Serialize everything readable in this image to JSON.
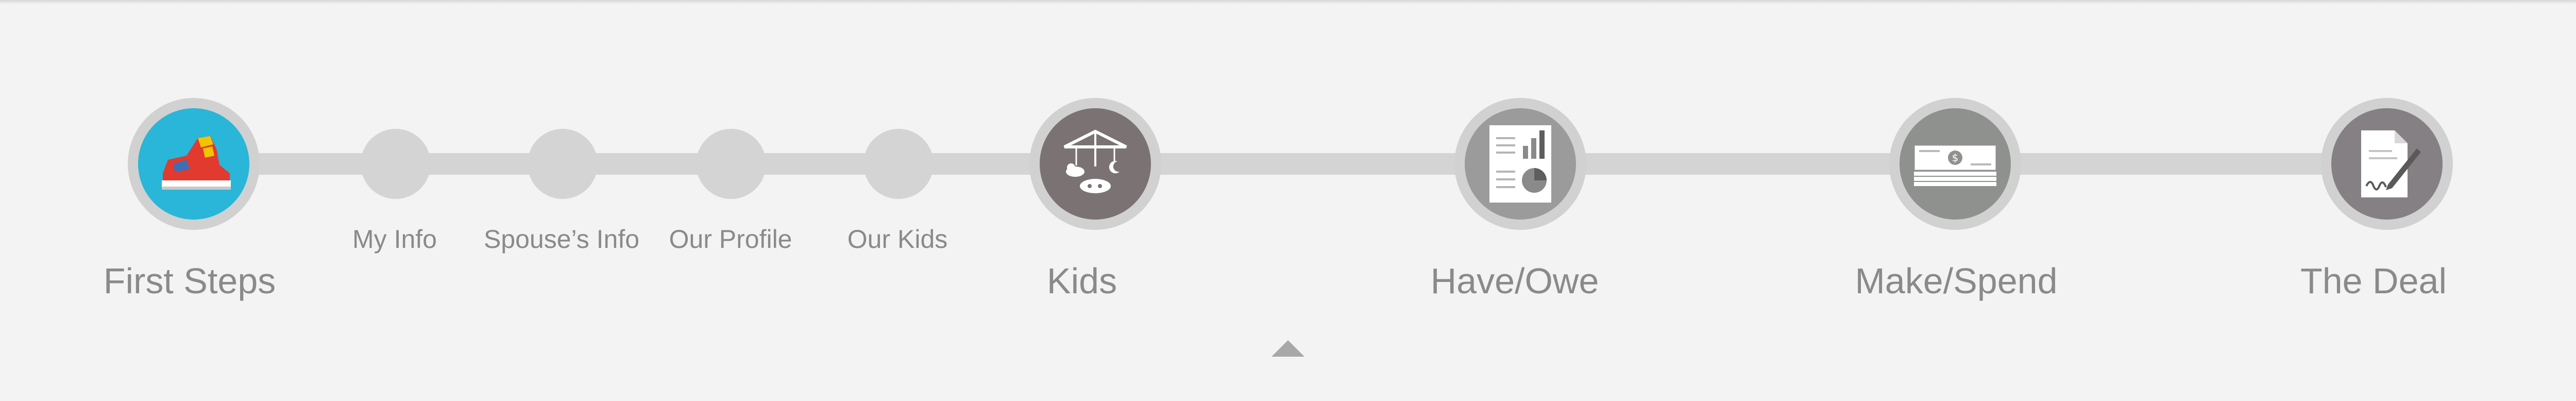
{
  "steps": {
    "first_steps": {
      "label": "First Steps",
      "icon": "sneaker-icon",
      "accent": "#29b6d8"
    },
    "my_info": {
      "label": "My Info"
    },
    "spouse_info": {
      "label": "Spouse’s Info"
    },
    "our_profile": {
      "label": "Our Profile"
    },
    "our_kids": {
      "label": "Our Kids"
    },
    "kids": {
      "label": "Kids",
      "icon": "baby-mobile-icon",
      "color": "#7b7373"
    },
    "have_owe": {
      "label": "Have/Owe",
      "icon": "report-chart-icon",
      "color": "#9b9b9b"
    },
    "make_spend": {
      "label": "Make/Spend",
      "icon": "money-stack-icon",
      "color": "#8e918e"
    },
    "the_deal": {
      "label": "The Deal",
      "icon": "signed-document-icon",
      "color": "#858084"
    }
  },
  "colors": {
    "background": "#f3f3f3",
    "track": "#d4d4d4",
    "label": "#8a8a8a"
  }
}
